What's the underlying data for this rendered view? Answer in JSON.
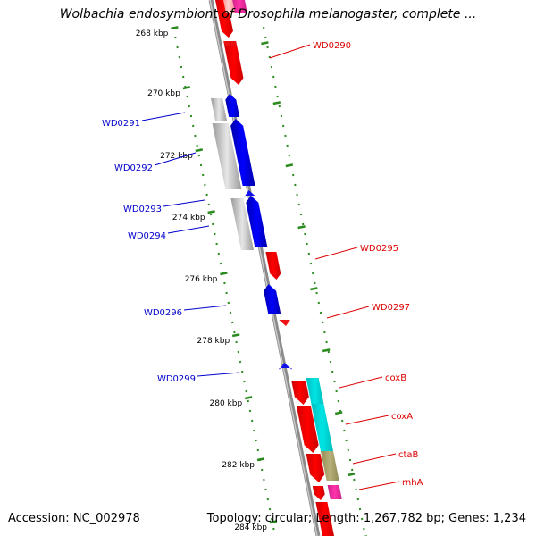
{
  "title": "Wolbachia endosymbiont of Drosophila melanogaster, complete ...",
  "accession": {
    "label": "Accession:",
    "value": "NC_002978"
  },
  "topology": {
    "label": "Topology:",
    "value": "circular"
  },
  "length": {
    "label": "Length:",
    "value": "1,267,782 bp"
  },
  "genes": {
    "label": "Genes:",
    "value": "1,234"
  },
  "colors": {
    "backbone": "#8a8a8a",
    "tick": "#2a8a1e",
    "forward_label": "#dd0000",
    "reverse_label": "#0000cc",
    "forward_gene": "#ff0000",
    "reverse_gene": "#0000ff",
    "cox": "#00e5e5",
    "ctab": "#b8b07a",
    "rnha": "#ff33aa",
    "gray_gene": "#bbbbbb"
  },
  "scale_labels": [
    "268 kbp",
    "270 kbp",
    "272 kbp",
    "274 kbp",
    "276 kbp",
    "278 kbp",
    "280 kbp",
    "282 kbp",
    "284 kbp"
  ],
  "forward_labels": [
    "WD0290",
    "WD0295",
    "WD0297",
    "coxB",
    "coxA",
    "ctaB",
    "rnhA"
  ],
  "reverse_labels": [
    "WD0291",
    "WD0292",
    "WD0293",
    "WD0294",
    "WD0296",
    "WD0299"
  ]
}
